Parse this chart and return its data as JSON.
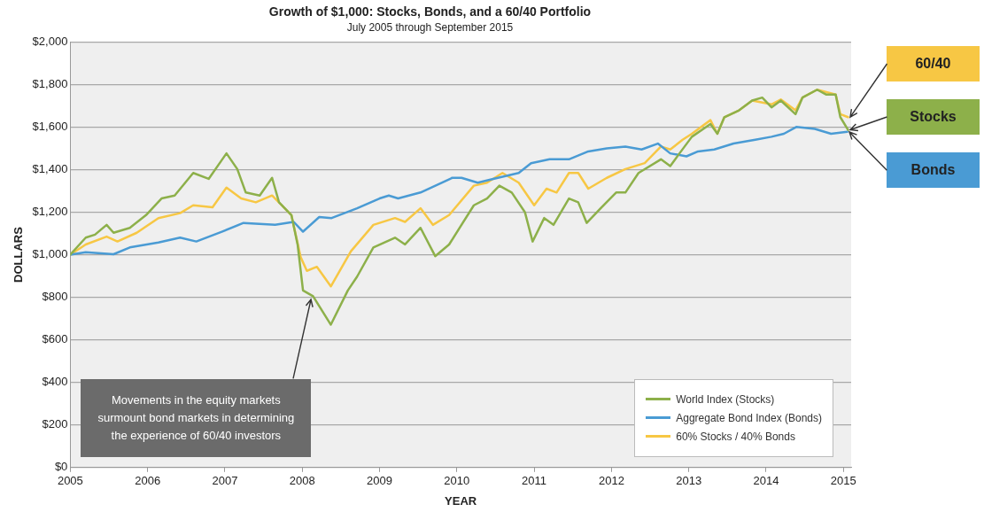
{
  "chart_data": {
    "type": "line",
    "title": "Growth of $1,000: Stocks, Bonds, and a 60/40 Portfolio",
    "subtitle": "July 2005 through September 2015",
    "xlabel": "YEAR",
    "ylabel": "DOLLARS",
    "xlim": [
      2005,
      2015.1
    ],
    "xticks": [
      2005,
      2006,
      2007,
      2008,
      2009,
      2010,
      2011,
      2012,
      2013,
      2014,
      2015
    ],
    "ylim": [
      0,
      2000
    ],
    "yticks": [
      {
        "value": 0,
        "label": "$0"
      },
      {
        "value": 200,
        "label": "$200"
      },
      {
        "value": 400,
        "label": "$400"
      },
      {
        "value": 600,
        "label": "$600"
      },
      {
        "value": 800,
        "label": "$800"
      },
      {
        "value": 1000,
        "label": "$1,000"
      },
      {
        "value": 1200,
        "label": "$1,200"
      },
      {
        "value": 1400,
        "label": "$1,400"
      },
      {
        "value": 1600,
        "label": "$1,600"
      },
      {
        "value": 1800,
        "label": "$1,800"
      },
      {
        "value": 2000,
        "label": "$2,000"
      }
    ],
    "grid": "y",
    "legend": "bottom right",
    "marker": "none",
    "line_style": "solid",
    "series": [
      {
        "name": "World Index (Stocks)",
        "color": "#8db04a",
        "x": [
          2005,
          2005.2,
          2005.32,
          2005.47,
          2005.56,
          2005.77,
          2005.98,
          2006.18,
          2006.35,
          2006.59,
          2006.79,
          2007.02,
          2007.16,
          2007.27,
          2007.45,
          2007.61,
          2007.7,
          2007.86,
          2007.94,
          2008.01,
          2008.14,
          2008.37,
          2008.59,
          2008.71,
          2008.92,
          2009.2,
          2009.33,
          2009.53,
          2009.72,
          2009.9,
          2010.22,
          2010.39,
          2010.55,
          2010.71,
          2010.88,
          2010.98,
          2011.13,
          2011.25,
          2011.45,
          2011.57,
          2011.68,
          2011.86,
          2012.06,
          2012.18,
          2012.35,
          2012.64,
          2012.76,
          2012.88,
          2013.04,
          2013.28,
          2013.37,
          2013.46,
          2013.65,
          2013.82,
          2013.95,
          2014.07,
          2014.19,
          2014.38,
          2014.47,
          2014.66,
          2014.78,
          2014.9,
          2014.96,
          2015.06
        ],
        "values": [
          1000,
          1080,
          1094,
          1140,
          1103,
          1126,
          1186,
          1264,
          1278,
          1384,
          1356,
          1476,
          1402,
          1292,
          1278,
          1361,
          1246,
          1186,
          1048,
          832,
          805,
          671,
          832,
          897,
          1034,
          1080,
          1048,
          1126,
          993,
          1048,
          1232,
          1264,
          1324,
          1292,
          1200,
          1062,
          1172,
          1140,
          1264,
          1246,
          1149,
          1218,
          1292,
          1292,
          1384,
          1448,
          1416,
          1476,
          1554,
          1614,
          1568,
          1646,
          1678,
          1724,
          1738,
          1692,
          1724,
          1660,
          1738,
          1775,
          1752,
          1752,
          1646,
          1586
        ]
      },
      {
        "name": "Aggregate Bond Index (Bonds)",
        "color": "#4a9bd4",
        "x": [
          2005,
          2005.2,
          2005.56,
          2005.77,
          2006.14,
          2006.42,
          2006.63,
          2006.96,
          2007.24,
          2007.65,
          2007.89,
          2008.01,
          2008.22,
          2008.38,
          2008.71,
          2009,
          2009.12,
          2009.24,
          2009.53,
          2009.94,
          2010.06,
          2010.27,
          2010.47,
          2010.8,
          2010.96,
          2011.2,
          2011.45,
          2011.7,
          2011.94,
          2012.18,
          2012.39,
          2012.6,
          2012.76,
          2012.97,
          2013.12,
          2013.33,
          2013.58,
          2013.86,
          2014.07,
          2014.23,
          2014.39,
          2014.63,
          2014.84,
          2015.05
        ],
        "values": [
          1000,
          1011,
          1002,
          1034,
          1057,
          1080,
          1062,
          1108,
          1149,
          1140,
          1154,
          1108,
          1177,
          1172,
          1218,
          1264,
          1278,
          1264,
          1292,
          1361,
          1361,
          1338,
          1356,
          1384,
          1430,
          1448,
          1448,
          1485,
          1499,
          1508,
          1494,
          1522,
          1476,
          1462,
          1485,
          1494,
          1522,
          1540,
          1554,
          1568,
          1600,
          1591,
          1568,
          1577
        ]
      },
      {
        "name": "60% Stocks / 40% Bonds",
        "color": "#f7c744",
        "x": [
          2005,
          2005.2,
          2005.47,
          2005.61,
          2005.86,
          2006.14,
          2006.42,
          2006.59,
          2006.84,
          2007.02,
          2007.21,
          2007.4,
          2007.61,
          2007.86,
          2007.98,
          2008.06,
          2008.19,
          2008.37,
          2008.63,
          2008.92,
          2009.2,
          2009.33,
          2009.53,
          2009.69,
          2009.9,
          2010.22,
          2010.39,
          2010.59,
          2010.8,
          2011,
          2011.16,
          2011.29,
          2011.45,
          2011.57,
          2011.7,
          2011.94,
          2012.18,
          2012.43,
          2012.64,
          2012.76,
          2012.92,
          2013.04,
          2013.28,
          2013.37,
          2013.46,
          2013.65,
          2013.82,
          2014.07,
          2014.19,
          2014.38,
          2014.47,
          2014.66,
          2014.9,
          2014.96,
          2015.06
        ],
        "values": [
          1000,
          1048,
          1085,
          1062,
          1103,
          1172,
          1195,
          1232,
          1223,
          1315,
          1264,
          1246,
          1278,
          1186,
          988,
          924,
          943,
          851,
          1016,
          1140,
          1172,
          1154,
          1218,
          1140,
          1186,
          1324,
          1338,
          1384,
          1338,
          1232,
          1310,
          1292,
          1384,
          1384,
          1310,
          1361,
          1402,
          1430,
          1508,
          1494,
          1540,
          1568,
          1632,
          1568,
          1646,
          1678,
          1724,
          1706,
          1729,
          1678,
          1738,
          1775,
          1752,
          1660,
          1646
        ]
      }
    ],
    "annotations": [
      {
        "text": "Movements in the equity markets surmount bond markets in determining the experience of 60/40 investors",
        "x": 2008.14,
        "y": 805
      },
      "60/40",
      "Stocks",
      "Bonds"
    ]
  }
}
